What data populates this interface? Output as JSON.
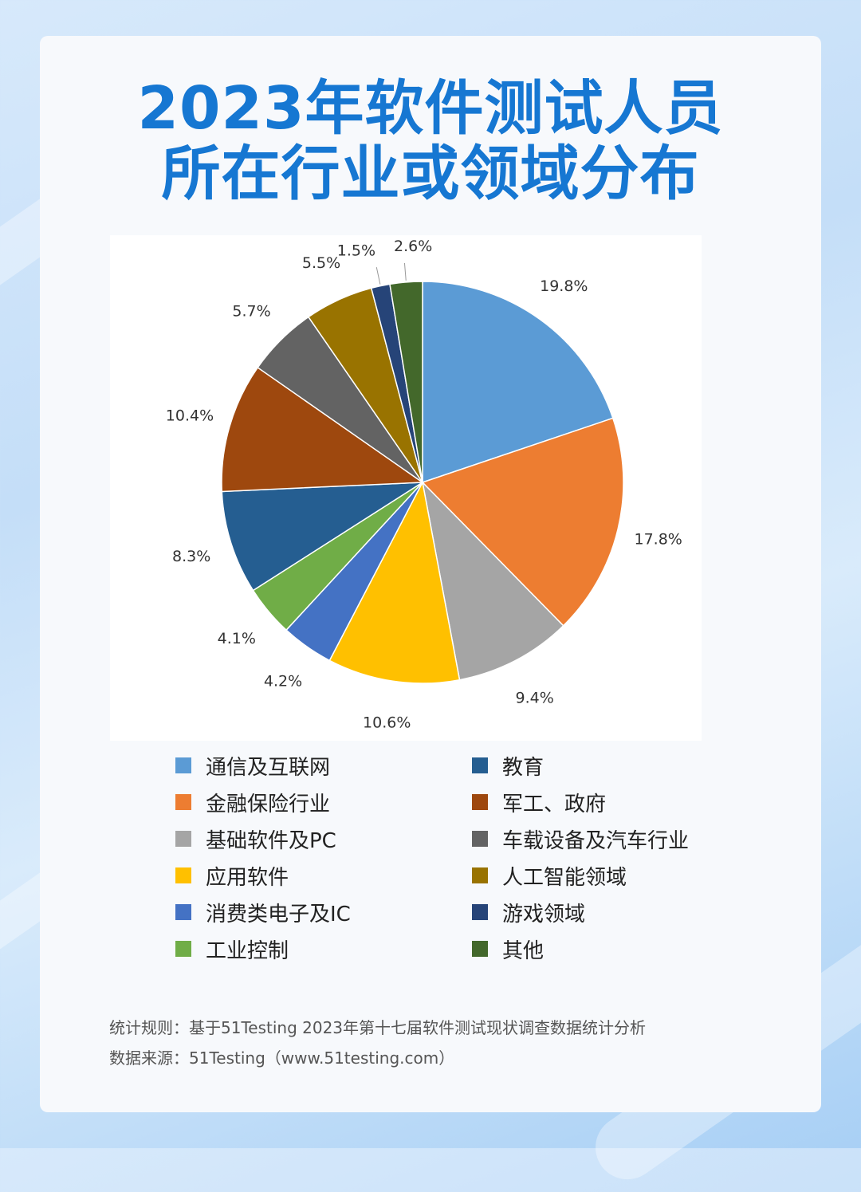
{
  "title_line1": "2023年软件测试人员",
  "title_line2": "所在行业或领域分布",
  "chart_data": {
    "type": "pie",
    "start_angle_deg": 90,
    "direction": "clockwise",
    "legend_position": "bottom",
    "slices": [
      {
        "label": "通信及互联网",
        "value": 19.8,
        "display": "19.8%",
        "color": "#5b9bd5"
      },
      {
        "label": "金融保险行业",
        "value": 17.8,
        "display": "17.8%",
        "color": "#ed7d31"
      },
      {
        "label": "基础软件及PC",
        "value": 9.4,
        "display": "9.4%",
        "color": "#a5a5a5"
      },
      {
        "label": "应用软件",
        "value": 10.6,
        "display": "10.6%",
        "color": "#ffc000"
      },
      {
        "label": "消费类电子及IC",
        "value": 4.2,
        "display": "4.2%",
        "color": "#4472c4"
      },
      {
        "label": "工业控制",
        "value": 4.1,
        "display": "4.1%",
        "color": "#70ad47"
      },
      {
        "label": "教育",
        "value": 8.3,
        "display": "8.3%",
        "color": "#255e91"
      },
      {
        "label": "军工、政府",
        "value": 10.4,
        "display": "10.4%",
        "color": "#9e480e"
      },
      {
        "label": "车载设备及汽车行业",
        "value": 5.7,
        "display": "5.7%",
        "color": "#636363"
      },
      {
        "label": "人工智能领域",
        "value": 5.5,
        "display": "5.5%",
        "color": "#997300"
      },
      {
        "label": "游戏领域",
        "value": 1.5,
        "display": "1.5%",
        "color": "#264478"
      },
      {
        "label": "其他",
        "value": 2.6,
        "display": "2.6%",
        "color": "#43682b"
      }
    ]
  },
  "footnote_rule": "统计规则：基于51Testing 2023年第十七届软件测试现状调查数据统计分析",
  "footnote_source": "数据来源：51Testing（www.51testing.com）"
}
